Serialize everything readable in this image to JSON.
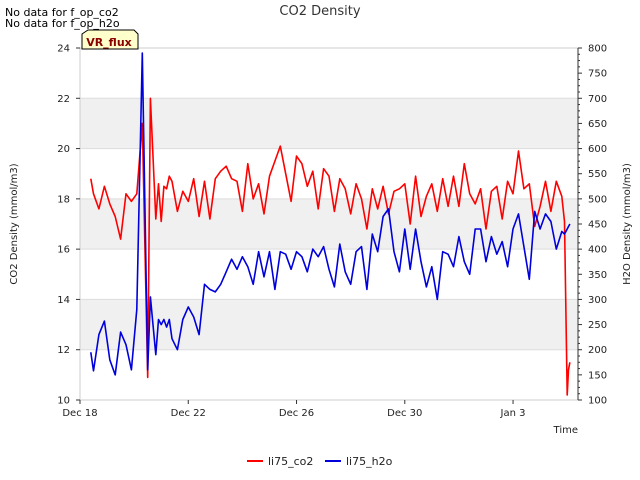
{
  "notes": [
    "No data for f_op_co2",
    "No data for f_op_h2o"
  ],
  "badge": "VR_flux",
  "colors": {
    "co2": "#ff0000",
    "h2o": "#0000dd",
    "band": "#f0f0f0",
    "badge_bg": "#ffffcc"
  },
  "chart_data": {
    "type": "line",
    "title": "CO2 Density",
    "xlabel": "Time",
    "ylabel": "CO2 Density (mmol/m3)",
    "y2label": "H2O Density (mmol/m3)",
    "xlim": [
      0,
      18.4
    ],
    "ylim": [
      10,
      24
    ],
    "y2lim": [
      100,
      800
    ],
    "xticks": [
      {
        "x": 0,
        "label": "Dec 18"
      },
      {
        "x": 4,
        "label": "Dec 22"
      },
      {
        "x": 8,
        "label": "Dec 26"
      },
      {
        "x": 12,
        "label": "Dec 30"
      },
      {
        "x": 16,
        "label": "Jan 3"
      }
    ],
    "yticks": [
      10,
      12,
      14,
      16,
      18,
      20,
      22,
      24
    ],
    "y2ticks": [
      100,
      150,
      200,
      250,
      300,
      350,
      400,
      450,
      500,
      550,
      600,
      650,
      700,
      750,
      800
    ],
    "legend_position": "bottom-center",
    "series": [
      {
        "name": "li75_co2",
        "axis": "left",
        "x": [
          0.4,
          0.5,
          0.7,
          0.9,
          1.1,
          1.3,
          1.5,
          1.7,
          1.9,
          2.1,
          2.3,
          2.5,
          2.6,
          2.8,
          2.9,
          3.0,
          3.0,
          3.1,
          3.2,
          3.3,
          3.4,
          3.6,
          3.8,
          4.0,
          4.2,
          4.4,
          4.6,
          4.8,
          5.0,
          5.2,
          5.4,
          5.6,
          5.8,
          6.0,
          6.2,
          6.4,
          6.6,
          6.8,
          7.0,
          7.2,
          7.4,
          7.6,
          7.8,
          8.0,
          8.2,
          8.4,
          8.6,
          8.8,
          9.0,
          9.2,
          9.4,
          9.6,
          9.8,
          10.0,
          10.2,
          10.4,
          10.6,
          10.8,
          11.0,
          11.2,
          11.4,
          11.6,
          11.8,
          12.0,
          12.2,
          12.4,
          12.6,
          12.8,
          13.0,
          13.2,
          13.4,
          13.6,
          13.8,
          14.0,
          14.2,
          14.4,
          14.6,
          14.8,
          15.0,
          15.2,
          15.4,
          15.6,
          15.8,
          16.0,
          16.2,
          16.4,
          16.6,
          16.8,
          17.0,
          17.2,
          17.4,
          17.6,
          17.8,
          17.9,
          18.0,
          18.05,
          18.1
        ],
        "values": [
          18.8,
          18.2,
          17.6,
          18.5,
          17.8,
          17.3,
          16.4,
          18.2,
          17.9,
          18.2,
          21.0,
          10.9,
          22.0,
          17.2,
          18.6,
          17.1,
          17.1,
          18.5,
          18.4,
          18.9,
          18.7,
          17.5,
          18.3,
          17.9,
          18.8,
          17.3,
          18.7,
          17.2,
          18.8,
          19.1,
          19.3,
          18.8,
          18.7,
          17.5,
          19.4,
          18.0,
          18.6,
          17.4,
          18.9,
          19.5,
          20.1,
          19.0,
          17.9,
          19.7,
          19.4,
          18.5,
          19.1,
          17.6,
          19.2,
          18.9,
          17.5,
          18.8,
          18.4,
          17.4,
          18.6,
          18.0,
          16.8,
          18.4,
          17.6,
          18.5,
          17.4,
          18.3,
          18.4,
          18.6,
          17.0,
          18.9,
          17.3,
          18.1,
          18.6,
          17.5,
          18.8,
          17.7,
          18.9,
          17.7,
          19.4,
          18.2,
          17.8,
          18.4,
          16.8,
          18.3,
          18.5,
          17.2,
          18.7,
          18.2,
          19.9,
          18.4,
          18.6,
          16.9,
          17.7,
          18.7,
          17.5,
          18.7,
          18.1,
          17.1,
          10.2,
          11.2,
          11.5
        ]
      },
      {
        "name": "li75_h2o",
        "axis": "right",
        "x": [
          0.4,
          0.5,
          0.7,
          0.9,
          1.1,
          1.3,
          1.5,
          1.7,
          1.9,
          2.1,
          2.3,
          2.5,
          2.6,
          2.8,
          2.9,
          3.0,
          3.0,
          3.1,
          3.2,
          3.3,
          3.4,
          3.6,
          3.8,
          4.0,
          4.2,
          4.4,
          4.6,
          4.8,
          5.0,
          5.2,
          5.4,
          5.6,
          5.8,
          6.0,
          6.2,
          6.4,
          6.6,
          6.8,
          7.0,
          7.2,
          7.4,
          7.6,
          7.8,
          8.0,
          8.2,
          8.4,
          8.6,
          8.8,
          9.0,
          9.2,
          9.4,
          9.6,
          9.8,
          10.0,
          10.2,
          10.4,
          10.6,
          10.8,
          11.0,
          11.2,
          11.4,
          11.6,
          11.8,
          12.0,
          12.2,
          12.4,
          12.6,
          12.8,
          13.0,
          13.2,
          13.4,
          13.6,
          13.8,
          14.0,
          14.2,
          14.4,
          14.6,
          14.8,
          15.0,
          15.2,
          15.4,
          15.6,
          15.8,
          16.0,
          16.2,
          16.4,
          16.6,
          16.8,
          17.0,
          17.2,
          17.4,
          17.6,
          17.8,
          17.9,
          18.0,
          18.05,
          18.1
        ],
        "values": [
          195,
          158,
          230,
          257,
          180,
          150,
          235,
          210,
          160,
          280,
          790,
          160,
          305,
          190,
          260,
          250,
          250,
          260,
          245,
          260,
          222,
          200,
          260,
          285,
          265,
          230,
          330,
          320,
          315,
          330,
          355,
          380,
          360,
          385,
          365,
          330,
          395,
          345,
          395,
          320,
          395,
          390,
          360,
          395,
          385,
          355,
          400,
          385,
          405,
          360,
          325,
          410,
          355,
          330,
          395,
          405,
          320,
          430,
          395,
          465,
          480,
          395,
          355,
          440,
          360,
          440,
          375,
          325,
          365,
          300,
          395,
          390,
          365,
          425,
          375,
          350,
          440,
          440,
          375,
          425,
          390,
          415,
          365,
          440,
          470,
          405,
          340,
          475,
          440,
          470,
          455,
          400,
          435,
          430,
          440,
          445,
          450
        ]
      }
    ]
  }
}
